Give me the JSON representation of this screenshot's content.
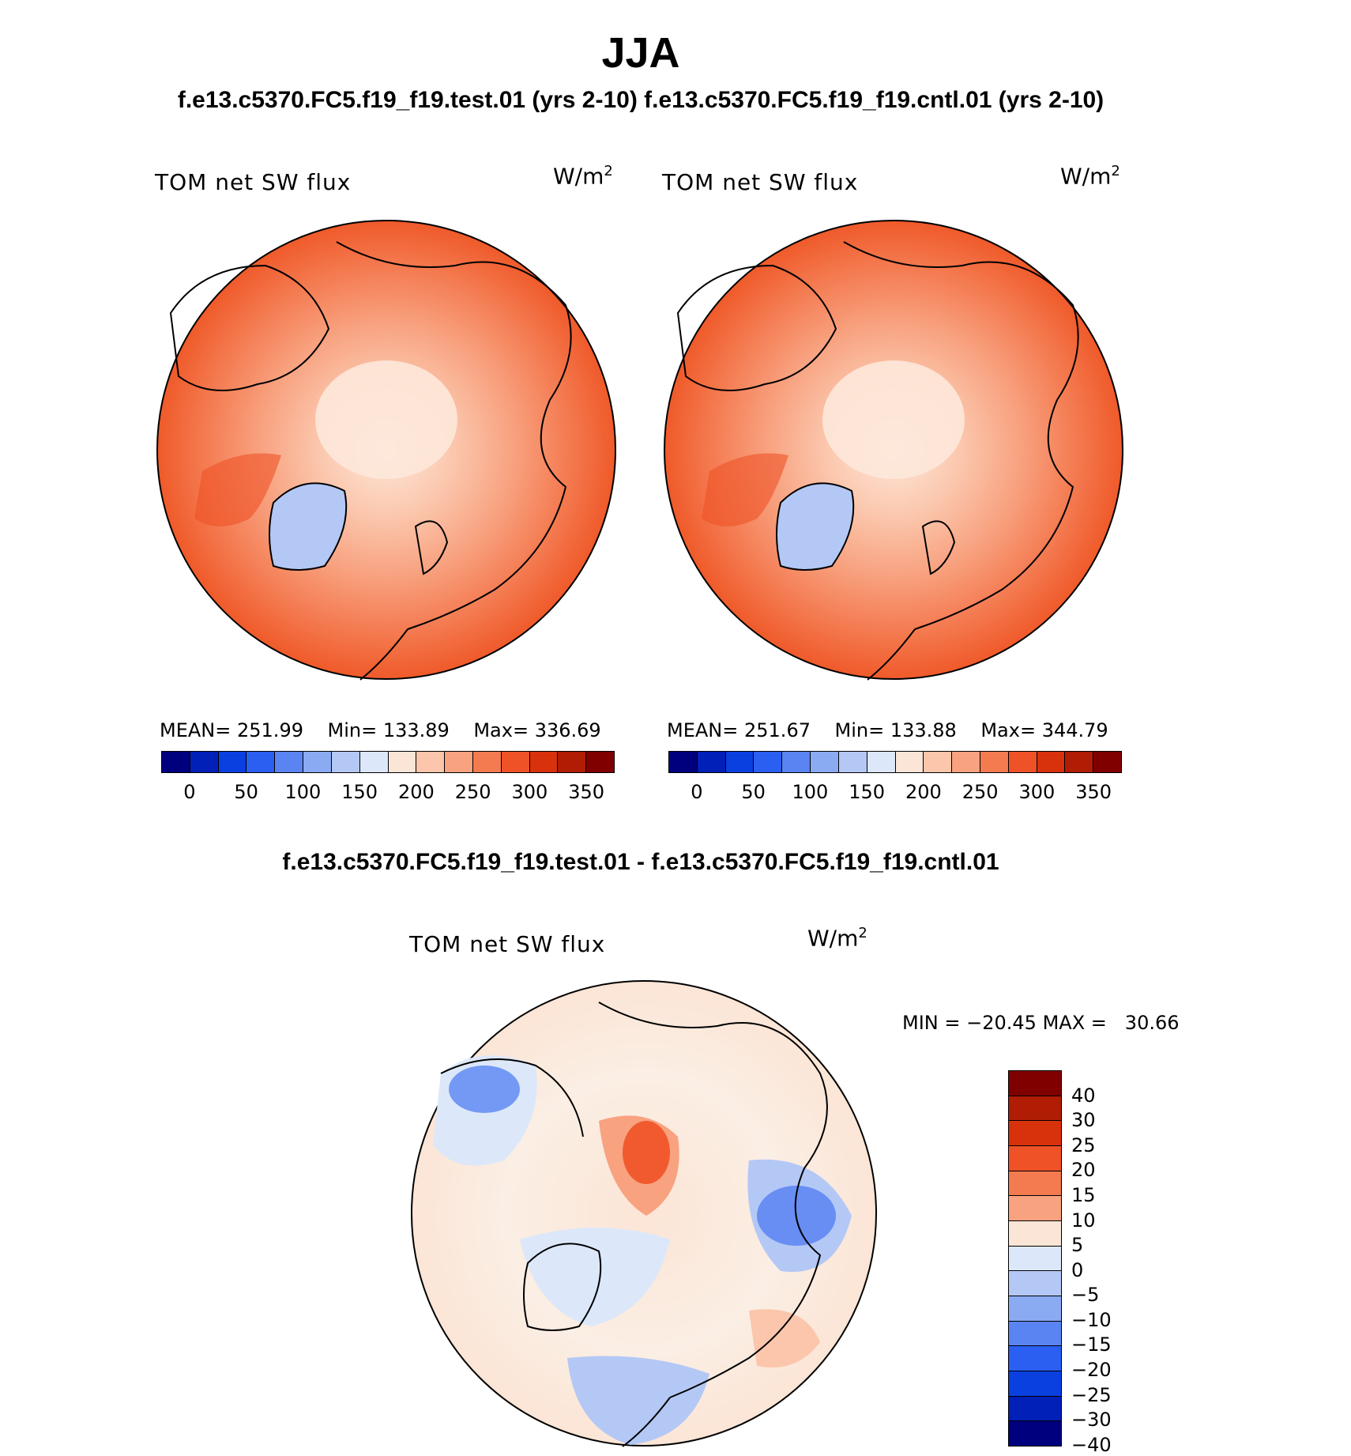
{
  "header": {
    "title": "JJA",
    "subtitle": "f.e13.c5370.FC5.f19_f19.test.01 (yrs 2-10) f.e13.c5370.FC5.f19_f19.cntl.01 (yrs 2-10)"
  },
  "panels": [
    {
      "name": "test",
      "variable": "TOM net SW flux",
      "units": "W/m",
      "units_exp": "2",
      "stats": {
        "mean_label": "MEAN=",
        "mean": "251.99",
        "min_label": "Min=",
        "min": "133.89",
        "max_label": "Max=",
        "max": "336.69"
      }
    },
    {
      "name": "cntl",
      "variable": "TOM net SW flux",
      "units": "W/m",
      "units_exp": "2",
      "stats": {
        "mean_label": "MEAN=",
        "mean": "251.67",
        "min_label": "Min=",
        "min": "133.88",
        "max_label": "Max=",
        "max": "344.79"
      }
    }
  ],
  "abs_colorbar": {
    "colors": [
      "#00007f",
      "#0020b8",
      "#0a40e0",
      "#2a5ff2",
      "#5a84f2",
      "#8aaaf2",
      "#b4c8f6",
      "#dce8fa",
      "#fbe5d6",
      "#fbc6ac",
      "#f8a280",
      "#f47a50",
      "#ef5226",
      "#d8320c",
      "#b01c04",
      "#800000"
    ],
    "ticks": [
      "0",
      "50",
      "100",
      "150",
      "200",
      "250",
      "300",
      "350"
    ]
  },
  "diff": {
    "title": "f.e13.c5370.FC5.f19_f19.test.01 - f.e13.c5370.FC5.f19_f19.cntl.01",
    "variable": "TOM net SW flux",
    "units": "W/m",
    "units_exp": "2",
    "min_label": "MIN =",
    "min": "−20.45",
    "max_label": "MAX =",
    "max": "30.66",
    "colorbar": {
      "colors": [
        "#800000",
        "#b01c04",
        "#d8320c",
        "#ef5226",
        "#f47a50",
        "#f8a280",
        "#fbe5d6",
        "#dce8fa",
        "#b4c8f6",
        "#8aaaf2",
        "#5a84f2",
        "#2a5ff2",
        "#0a40e0",
        "#0020b8",
        "#00007f"
      ],
      "labels": [
        "40",
        "30",
        "25",
        "20",
        "15",
        "10",
        "5",
        "0",
        "−5",
        "−10",
        "−15",
        "−20",
        "−25",
        "−30",
        "−40"
      ]
    }
  }
}
